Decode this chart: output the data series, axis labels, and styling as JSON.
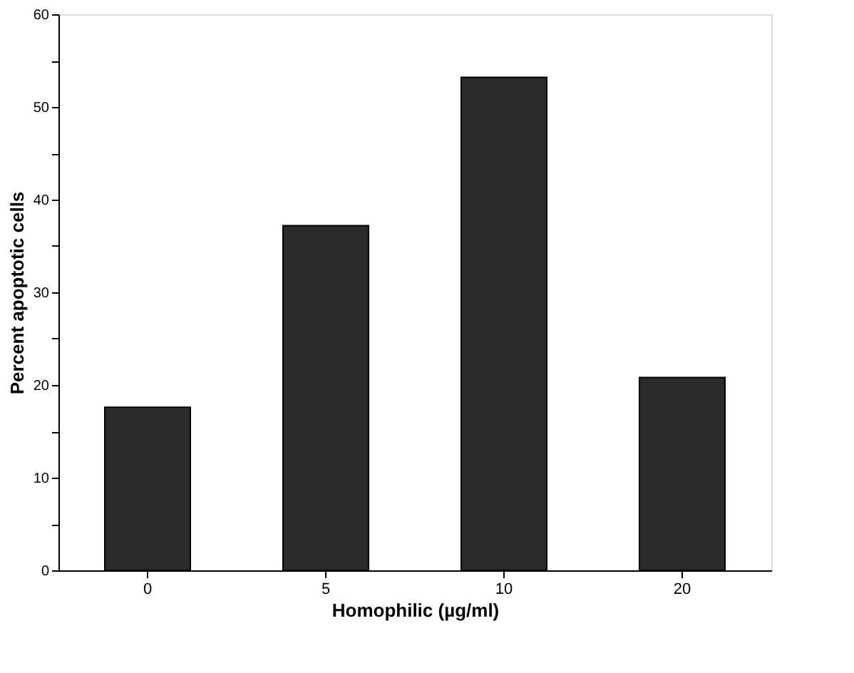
{
  "chart_data": {
    "type": "bar",
    "xlabel": "Homophilic (µg/ml)",
    "ylabel": "Percent apoptotic cells",
    "categories": [
      "0",
      "5",
      "10",
      "20"
    ],
    "values": [
      17.6,
      37.2,
      53.2,
      20.8
    ],
    "color": "#2b2b2b",
    "ylim": [
      0,
      60
    ],
    "yticks": [
      0,
      {
        "value": 5,
        "label": null
      },
      10,
      {
        "value": 15,
        "label": null
      },
      20,
      {
        "value": 25,
        "label": null
      },
      30,
      {
        "value": 35,
        "label": null
      },
      40,
      {
        "value": 45,
        "label": null
      },
      50,
      {
        "value": 55,
        "label": null
      },
      60
    ],
    "grid": false
  }
}
